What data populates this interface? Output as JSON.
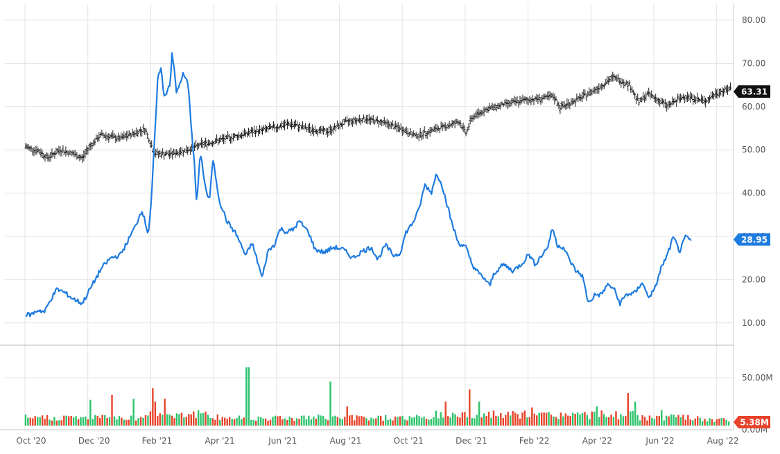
{
  "chart_data": [
    {
      "type": "line",
      "title": "",
      "x": [
        "Oct '20",
        "Dec '20",
        "Feb '21",
        "Apr '21",
        "Jun '21",
        "Aug '21",
        "Oct '21",
        "Dec '21",
        "Feb '22",
        "Apr '22",
        "Jun '22",
        "Aug '22"
      ],
      "y_ticks": [
        "80.00",
        "70.00",
        "60.00",
        "50.00",
        "40.00",
        "30.00",
        "20.00",
        "10.00"
      ],
      "ylim": [
        5,
        82
      ],
      "grid": true,
      "series": [
        {
          "role": "price-ohlc-bars",
          "color": "#1a1a1a",
          "last_value_label": "63.31",
          "anchors": [
            [
              0,
              50.7
            ],
            [
              0.2,
              49.8
            ],
            [
              0.35,
              48.2
            ],
            [
              0.55,
              50.0
            ],
            [
              0.75,
              49.1
            ],
            [
              0.9,
              48.0
            ],
            [
              1.0,
              50.5
            ],
            [
              1.2,
              53.5
            ],
            [
              1.5,
              52.6
            ],
            [
              1.75,
              54.0
            ],
            [
              1.9,
              54.8
            ],
            [
              2.05,
              49.2
            ],
            [
              2.3,
              49.0
            ],
            [
              2.6,
              50.1
            ],
            [
              2.8,
              51.3
            ],
            [
              3.0,
              51.9
            ],
            [
              3.3,
              53.0
            ],
            [
              3.6,
              54.1
            ],
            [
              3.9,
              55.0
            ],
            [
              4.2,
              56.0
            ],
            [
              4.5,
              54.8
            ],
            [
              4.8,
              54.2
            ],
            [
              5.1,
              56.5
            ],
            [
              5.4,
              57.2
            ],
            [
              5.7,
              56.3
            ],
            [
              6.0,
              54.7
            ],
            [
              6.2,
              53.2
            ],
            [
              6.4,
              54.2
            ],
            [
              6.6,
              55.1
            ],
            [
              6.9,
              56.5
            ],
            [
              7.0,
              53.8
            ],
            [
              7.1,
              57.5
            ],
            [
              7.3,
              59.2
            ],
            [
              7.6,
              60.5
            ],
            [
              7.9,
              61.4
            ],
            [
              8.2,
              61.9
            ],
            [
              8.4,
              62.3
            ],
            [
              8.5,
              59.8
            ],
            [
              8.8,
              61.8
            ],
            [
              9.1,
              64.3
            ],
            [
              9.35,
              66.8
            ],
            [
              9.6,
              65.1
            ],
            [
              9.75,
              61.0
            ],
            [
              9.9,
              63.0
            ],
            [
              10.2,
              60.2
            ],
            [
              10.5,
              62.5
            ],
            [
              10.8,
              61.2
            ],
            [
              11.0,
              63.2
            ],
            [
              11.3,
              64.6
            ],
            [
              11.45,
              63.31
            ]
          ]
        },
        {
          "role": "comparison-line",
          "color": "#1e7be0",
          "last_value_label": "28.95",
          "anchors": [
            [
              0,
              11.8
            ],
            [
              0.1,
              12.0
            ],
            [
              0.2,
              13.0
            ],
            [
              0.3,
              12.5
            ],
            [
              0.4,
              15.5
            ],
            [
              0.5,
              17.8
            ],
            [
              0.62,
              17.0
            ],
            [
              0.75,
              15.6
            ],
            [
              0.9,
              14.5
            ],
            [
              1.05,
              18.5
            ],
            [
              1.2,
              22.5
            ],
            [
              1.35,
              25.0
            ],
            [
              1.5,
              25.6
            ],
            [
              1.6,
              28.2
            ],
            [
              1.75,
              32.5
            ],
            [
              1.85,
              36.2
            ],
            [
              1.95,
              30.5
            ],
            [
              2.0,
              38.5
            ],
            [
              2.05,
              52.0
            ],
            [
              2.1,
              66.0
            ],
            [
              2.15,
              69.5
            ],
            [
              2.2,
              62.0
            ],
            [
              2.3,
              65.5
            ],
            [
              2.33,
              73.0
            ],
            [
              2.4,
              63.0
            ],
            [
              2.5,
              67.5
            ],
            [
              2.58,
              65.5
            ],
            [
              2.68,
              47.2
            ],
            [
              2.72,
              37.5
            ],
            [
              2.78,
              49.5
            ],
            [
              2.86,
              41.2
            ],
            [
              2.92,
              38.0
            ],
            [
              2.98,
              47.8
            ],
            [
              3.08,
              38.3
            ],
            [
              3.2,
              33.5
            ],
            [
              3.35,
              30.5
            ],
            [
              3.5,
              25.5
            ],
            [
              3.6,
              28.5
            ],
            [
              3.72,
              22.5
            ],
            [
              3.76,
              20.3
            ],
            [
              3.85,
              26.5
            ],
            [
              3.95,
              28.0
            ],
            [
              4.05,
              31.8
            ],
            [
              4.15,
              31.0
            ],
            [
              4.25,
              31.5
            ],
            [
              4.35,
              33.5
            ],
            [
              4.5,
              31.0
            ],
            [
              4.6,
              27.0
            ],
            [
              4.75,
              26.3
            ],
            [
              4.9,
              27.5
            ],
            [
              5.05,
              27.0
            ],
            [
              5.2,
              25.0
            ],
            [
              5.35,
              26.5
            ],
            [
              5.5,
              27.5
            ],
            [
              5.6,
              24.6
            ],
            [
              5.72,
              28.0
            ],
            [
              5.85,
              25.6
            ],
            [
              5.95,
              26.0
            ],
            [
              6.05,
              31.0
            ],
            [
              6.15,
              33.0
            ],
            [
              6.25,
              36.0
            ],
            [
              6.35,
              42.0
            ],
            [
              6.45,
              40.0
            ],
            [
              6.52,
              44.2
            ],
            [
              6.6,
              43.0
            ],
            [
              6.68,
              38.5
            ],
            [
              6.78,
              33.0
            ],
            [
              6.88,
              28.5
            ],
            [
              7.0,
              27.5
            ],
            [
              7.1,
              23.5
            ],
            [
              7.2,
              21.5
            ],
            [
              7.3,
              20.2
            ],
            [
              7.38,
              18.5
            ],
            [
              7.45,
              21.5
            ],
            [
              7.6,
              23.5
            ],
            [
              7.75,
              22.0
            ],
            [
              7.9,
              23.8
            ],
            [
              8.0,
              26.0
            ],
            [
              8.1,
              23.5
            ],
            [
              8.2,
              25.5
            ],
            [
              8.3,
              27.5
            ],
            [
              8.38,
              32.0
            ],
            [
              8.45,
              28.0
            ],
            [
              8.55,
              27.5
            ],
            [
              8.65,
              24.5
            ],
            [
              8.75,
              22.0
            ],
            [
              8.85,
              21.0
            ],
            [
              8.95,
              14.5
            ],
            [
              9.05,
              16.5
            ],
            [
              9.15,
              16.5
            ],
            [
              9.25,
              18.8
            ],
            [
              9.35,
              18.0
            ],
            [
              9.45,
              14.5
            ],
            [
              9.55,
              16.5
            ],
            [
              9.7,
              17.0
            ],
            [
              9.8,
              19.5
            ],
            [
              9.9,
              16.0
            ],
            [
              10.0,
              17.5
            ],
            [
              10.1,
              22.5
            ],
            [
              10.2,
              25.5
            ],
            [
              10.3,
              29.8
            ],
            [
              10.4,
              26.5
            ],
            [
              10.5,
              30.0
            ],
            [
              10.58,
              28.95
            ]
          ]
        }
      ]
    },
    {
      "type": "bar",
      "title": "",
      "role": "volume",
      "y_ticks": [
        "50.00M"
      ],
      "bottom_tick_partial": "0.00M",
      "ylim": [
        0,
        80
      ],
      "last_value_label": "5.38M",
      "colors": {
        "up": "#2cc36b",
        "down": "#e8432a"
      },
      "baseline_m": 9,
      "spikes": [
        [
          1.03,
          27,
          "up"
        ],
        [
          1.38,
          32,
          "down"
        ],
        [
          1.73,
          28,
          "up"
        ],
        [
          2.03,
          39,
          "down"
        ],
        [
          2.07,
          25,
          "down"
        ],
        [
          2.2,
          28,
          "down"
        ],
        [
          3.53,
          61,
          "up"
        ],
        [
          4.84,
          46,
          "up"
        ],
        [
          5.13,
          20,
          "down"
        ],
        [
          6.68,
          25,
          "down"
        ],
        [
          7.06,
          38,
          "down"
        ],
        [
          7.2,
          25,
          "up"
        ],
        [
          8.05,
          19,
          "down"
        ],
        [
          9.08,
          20,
          "up"
        ],
        [
          9.58,
          34,
          "down"
        ],
        [
          9.68,
          25,
          "up"
        ],
        [
          10.1,
          16,
          "up"
        ]
      ]
    }
  ]
}
